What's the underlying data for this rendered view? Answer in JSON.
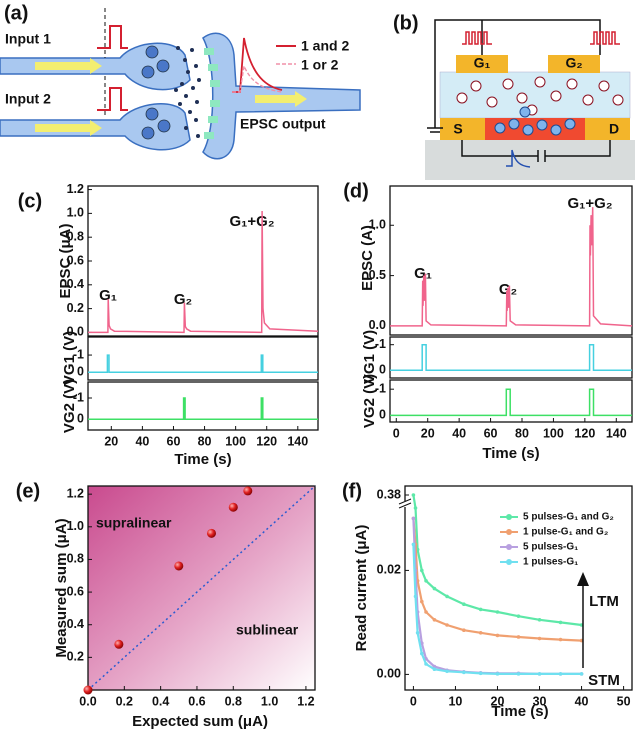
{
  "diagrams": {
    "a": {
      "label": "(a)",
      "input1": "Input 1",
      "input2": "Input 2",
      "legend_both": "1 and 2",
      "legend_either": "1 or 2",
      "output": "EPSC output"
    },
    "b": {
      "label": "(b)",
      "gate1": "G₁",
      "gate2": "G₂",
      "source": "S",
      "drain": "D"
    }
  },
  "chart_data": [
    {
      "type": "line",
      "label": "(c)",
      "ylabel": "EPSC (μA)",
      "annotations": [
        "G₁",
        "G₂",
        "G₁+G₂"
      ],
      "color": "#f0648c",
      "x": [
        5,
        17.8,
        18,
        18.6,
        19.5,
        22,
        66.8,
        67,
        67.6,
        68.5,
        71,
        116.8,
        117,
        117.6,
        118.5,
        122,
        153
      ],
      "values": [
        0,
        0,
        0.28,
        0.06,
        0.03,
        0.01,
        0,
        0.25,
        0.05,
        0.03,
        0.01,
        0,
        1.02,
        0.2,
        0.08,
        0.03,
        0.01
      ],
      "ylim": [
        -0.03,
        1.23
      ],
      "yticks": [
        {
          "value": 0,
          "label": "0.0"
        },
        {
          "value": 0.2,
          "label": "0.2"
        },
        {
          "value": 0.4,
          "label": "0.4"
        },
        {
          "value": 0.6,
          "label": "0.6"
        },
        {
          "value": 0.8,
          "label": "0.8"
        },
        {
          "value": 1,
          "label": "1.0"
        },
        {
          "value": 1.2,
          "label": "1.2"
        }
      ]
    },
    {
      "type": "line",
      "ylabel": "VG1 (V)",
      "color": "#45d0e0",
      "x": [
        5,
        17.5,
        17.5,
        18.5,
        18.5,
        116.5,
        116.5,
        117.5,
        117.5,
        153
      ],
      "values": [
        0,
        0,
        -1,
        -1,
        0,
        0,
        -1,
        -1,
        0,
        0
      ],
      "ylim": [
        0.45,
        -2.05
      ],
      "yticks": [
        -1,
        0
      ]
    },
    {
      "type": "line",
      "ylabel": "VG2 (V)",
      "xlabel": "Time (s)",
      "color": "#3de065",
      "x": [
        5,
        66.5,
        66.5,
        67.5,
        67.5,
        116.5,
        116.5,
        117.5,
        117.5,
        153
      ],
      "values": [
        0,
        0,
        -1,
        -1,
        0,
        0,
        -1,
        -1,
        0,
        0
      ],
      "ylim": [
        0.5,
        -1.75
      ],
      "yticks": [
        -1,
        0
      ],
      "xlim": [
        5,
        153
      ],
      "xticks": [
        20,
        40,
        60,
        80,
        100,
        120,
        140
      ]
    },
    {
      "type": "line",
      "label": "(d)",
      "ylabel": "EPSC (A)",
      "annotations": [
        "G₁",
        "G₂",
        "G₁+G₂"
      ],
      "color": "#f0648c",
      "x": [
        -4,
        16.5,
        16.8,
        17,
        17.5,
        18,
        18.5,
        19,
        22,
        70,
        70.3,
        70.5,
        71,
        71.5,
        72,
        72.5,
        76,
        123,
        123.3,
        123.5,
        124,
        124.5,
        125,
        125.5,
        130,
        150
      ],
      "values": [
        0,
        0,
        0.45,
        0.2,
        0.5,
        0.25,
        0.52,
        0.05,
        0.01,
        0,
        0.35,
        0.15,
        0.38,
        0.18,
        0.4,
        0.05,
        0.01,
        0,
        1.0,
        0.7,
        1.1,
        0.8,
        1.18,
        0.1,
        0.02,
        0
      ],
      "ylim": [
        -0.09,
        1.39
      ],
      "yticks": [
        {
          "value": 0,
          "label": "0.0"
        },
        {
          "value": 0.5,
          "label": "0.5"
        },
        {
          "value": 1,
          "label": "1.0"
        }
      ]
    },
    {
      "type": "line",
      "ylabel": "VG1 (V)",
      "color": "#45d0e0",
      "x": [
        -4,
        16.5,
        16.5,
        19,
        19,
        123,
        123,
        125.5,
        125.5,
        150
      ],
      "values": [
        0,
        0,
        -1,
        -1,
        0,
        0,
        -1,
        -1,
        0,
        0
      ],
      "ylim": [
        0.3,
        -1.3
      ],
      "yticks": [
        -1,
        0
      ]
    },
    {
      "type": "line",
      "ylabel": "VG2 (V)",
      "xlabel": "Time (s)",
      "color": "#3de065",
      "x": [
        -4,
        70,
        70,
        72.5,
        72.5,
        123,
        123,
        125.5,
        125.5,
        150
      ],
      "values": [
        0,
        0,
        -1,
        -1,
        0,
        0,
        -1,
        -1,
        0,
        0
      ],
      "ylim": [
        0.25,
        -1.35
      ],
      "yticks": [
        -1,
        0
      ],
      "xlim": [
        -4,
        150
      ],
      "xticks": [
        0,
        20,
        40,
        60,
        80,
        100,
        120,
        140
      ]
    },
    {
      "type": "scatter",
      "label": "(e)",
      "xlabel": "Expected sum (μA)",
      "ylabel": "Measured sum (μA)",
      "regions": [
        "supralinear",
        "sublinear"
      ],
      "color": "#d42030",
      "x": [
        0,
        0.17,
        0.5,
        0.68,
        0.8,
        0.88
      ],
      "values": [
        0,
        0.28,
        0.76,
        0.96,
        1.12,
        1.22
      ],
      "xlim": [
        0,
        1.25
      ],
      "ylim": [
        0,
        1.25
      ],
      "xticks": [
        {
          "value": 0,
          "label": "0.0"
        },
        {
          "value": 0.2,
          "label": "0.2"
        },
        {
          "value": 0.4,
          "label": "0.4"
        },
        {
          "value": 0.6,
          "label": "0.6"
        },
        {
          "value": 0.8,
          "label": "0.8"
        },
        {
          "value": 1,
          "label": "1.0"
        },
        {
          "value": 1.2,
          "label": "1.2"
        }
      ],
      "yticks": [
        {
          "value": 0.2,
          "label": "0.2"
        },
        {
          "value": 0.4,
          "label": "0.4"
        },
        {
          "value": 0.6,
          "label": "0.6"
        },
        {
          "value": 0.8,
          "label": "0.8"
        },
        {
          "value": 1,
          "label": "1.0"
        },
        {
          "value": 1.2,
          "label": "1.2"
        }
      ]
    },
    {
      "type": "line",
      "label": "(f)",
      "xlabel": "Time (s)",
      "ylabel": "Read current (μA)",
      "annotations": [
        "LTM",
        "STM"
      ],
      "x": [
        0,
        0.5,
        1,
        2,
        3,
        5,
        8,
        12,
        16,
        20,
        25,
        30,
        35,
        40
      ],
      "series": [
        {
          "name": "5 pulses-G₁ and G₂",
          "color": "#5de8a8",
          "values": [
            0.38,
            0.032,
            0.024,
            0.02,
            0.018,
            0.0165,
            0.015,
            0.0135,
            0.0125,
            0.012,
            0.0112,
            0.0105,
            0.01,
            0.0095
          ]
        },
        {
          "name": "1 pulse-G₁ and G₂",
          "color": "#f0a070",
          "values": [
            0.03,
            0.025,
            0.018,
            0.014,
            0.012,
            0.0105,
            0.0095,
            0.0085,
            0.008,
            0.0075,
            0.0072,
            0.0069,
            0.0067,
            0.0065
          ]
        },
        {
          "name": "5 pulses-G₁",
          "color": "#b8a0e0",
          "values": [
            0.03,
            0.02,
            0.012,
            0.006,
            0.003,
            0.0015,
            0.0008,
            0.0005,
            0.0003,
            0.0002,
            0.0002,
            0.0001,
            0.0001,
            0.0001
          ]
        },
        {
          "name": "1 pulses-G₁",
          "color": "#70e0f0",
          "values": [
            0.025,
            0.015,
            0.008,
            0.004,
            0.002,
            0.001,
            0.0006,
            0.0004,
            0.0002,
            0.0001,
            0.0001,
            0.0001,
            0.0001,
            0.0001
          ]
        }
      ],
      "xlim": [
        -2,
        52
      ],
      "xticks": [
        0,
        10,
        20,
        30,
        40,
        50
      ],
      "ylim": [
        -0.003,
        0.39
      ],
      "ybreak": [
        0.032,
        0.37
      ],
      "yticks": [
        {
          "value": 0,
          "label": "0.00"
        },
        0.02,
        0.38
      ]
    }
  ]
}
